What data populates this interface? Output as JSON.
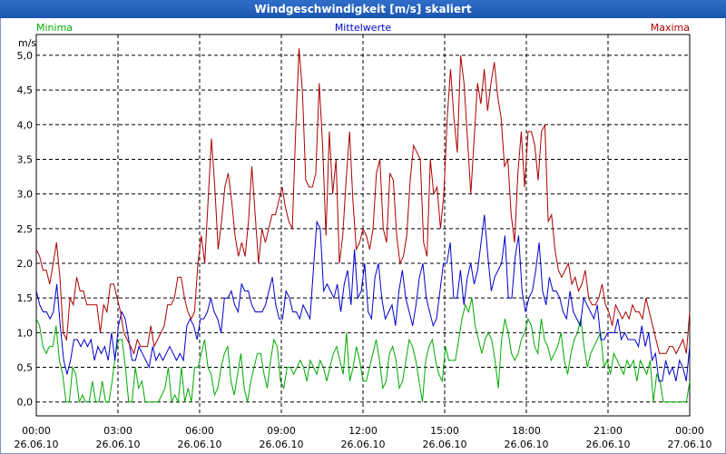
{
  "window": {
    "title": "Windgeschwindigkeit [m/s] skaliert"
  },
  "chart_data": {
    "type": "line",
    "title": "Windgeschwindigkeit [m/s] skaliert",
    "ylabel": "m/s",
    "ylim": [
      -0.2,
      5.3
    ],
    "xlim": [
      0,
      24
    ],
    "grid": true,
    "y_ticks": [
      "0,0",
      "0,5",
      "1,0",
      "1,5",
      "2,0",
      "2,5",
      "3,0",
      "3,5",
      "4,0",
      "4,5",
      "5,0"
    ],
    "x_ticks": [
      {
        "time": "00:00",
        "date": "26.06.10"
      },
      {
        "time": "03:00",
        "date": "26.06.10"
      },
      {
        "time": "06:00",
        "date": "26.06.10"
      },
      {
        "time": "09:00",
        "date": "26.06.10"
      },
      {
        "time": "12:00",
        "date": "26.06.10"
      },
      {
        "time": "15:00",
        "date": "26.06.10"
      },
      {
        "time": "18:00",
        "date": "26.06.10"
      },
      {
        "time": "21:00",
        "date": "26.06.10"
      },
      {
        "time": "00:00",
        "date": "27.06.10"
      }
    ],
    "series": [
      {
        "name": "Minima",
        "color": "#00aa00",
        "values": [
          1.2,
          1.1,
          0.8,
          0.7,
          0.8,
          0.8,
          1.1,
          0.6,
          0.4,
          0.0,
          0.0,
          0.5,
          0.4,
          0.0,
          0.1,
          0.0,
          0.0,
          0.3,
          0.0,
          0.0,
          0.3,
          0.0,
          0.0,
          0.3,
          0.7,
          0.9,
          0.9,
          0.5,
          0.0,
          0.0,
          0.5,
          0.2,
          0.3,
          0.0,
          0.0,
          0.0,
          0.0,
          0.0,
          0.1,
          0.2,
          0.5,
          0.0,
          0.1,
          0.0,
          0.5,
          0.0,
          0.2,
          0.0,
          0.5,
          0.5,
          0.7,
          0.9,
          0.5,
          0.4,
          0.1,
          0.2,
          0.5,
          0.7,
          0.8,
          0.3,
          0.1,
          0.4,
          0.7,
          0.2,
          0.0,
          0.3,
          0.5,
          0.7,
          0.7,
          0.4,
          0.2,
          0.6,
          0.9,
          0.8,
          0.3,
          0.2,
          0.5,
          0.5,
          0.4,
          0.5,
          0.6,
          0.5,
          0.3,
          0.6,
          0.5,
          0.4,
          0.6,
          0.5,
          0.3,
          0.5,
          0.7,
          0.8,
          0.6,
          0.4,
          1.0,
          0.3,
          0.5,
          0.8,
          0.6,
          0.3,
          0.3,
          0.5,
          0.7,
          0.9,
          0.6,
          0.2,
          0.3,
          0.7,
          0.8,
          0.6,
          0.2,
          0.3,
          0.6,
          0.9,
          0.8,
          0.6,
          0.3,
          0.0,
          0.6,
          0.8,
          0.9,
          0.6,
          0.4,
          0.3,
          0.8,
          0.6,
          0.6,
          0.6,
          0.9,
          1.2,
          1.4,
          1.3,
          1.5,
          1.1,
          0.9,
          0.7,
          0.9,
          1.0,
          0.9,
          0.6,
          0.2,
          0.9,
          1.2,
          1.0,
          0.7,
          0.6,
          0.7,
          0.9,
          1.0,
          1.2,
          1.1,
          0.8,
          0.7,
          1.2,
          0.9,
          0.8,
          0.6,
          0.7,
          0.8,
          1.0,
          0.6,
          0.4,
          0.7,
          0.9,
          1.0,
          1.2,
          0.8,
          0.5,
          0.7,
          0.8,
          0.9,
          1.0,
          0.5,
          0.6,
          0.4,
          0.7,
          0.6,
          0.5,
          0.4,
          0.6,
          0.5,
          0.6,
          0.3,
          0.6,
          0.5,
          0.4,
          0.6,
          0.0,
          0.4,
          0.3,
          0.0,
          0.0,
          0.0,
          0.0,
          0.0,
          0.0,
          0.0,
          0.0,
          0.3
        ]
      },
      {
        "name": "Mittelwerte",
        "color": "#0000cc",
        "values": [
          1.6,
          1.4,
          1.3,
          1.3,
          1.2,
          1.3,
          1.7,
          1.1,
          0.6,
          0.4,
          0.6,
          0.9,
          0.9,
          0.8,
          0.9,
          0.8,
          0.9,
          0.6,
          0.8,
          0.7,
          0.8,
          0.6,
          1.0,
          0.6,
          1.1,
          1.3,
          1.2,
          0.9,
          0.6,
          0.6,
          0.8,
          0.7,
          0.6,
          0.5,
          0.8,
          0.6,
          0.7,
          0.6,
          0.7,
          0.8,
          0.7,
          0.6,
          0.7,
          0.6,
          1.1,
          1.2,
          1.1,
          0.9,
          1.2,
          1.2,
          1.3,
          1.5,
          1.3,
          1.2,
          1.0,
          1.5,
          1.5,
          1.6,
          1.4,
          1.3,
          1.7,
          1.6,
          1.6,
          1.4,
          1.3,
          1.3,
          1.3,
          1.4,
          1.6,
          1.8,
          1.4,
          1.2,
          1.2,
          1.6,
          1.5,
          1.3,
          1.3,
          1.2,
          1.4,
          1.3,
          1.2,
          1.9,
          2.6,
          2.5,
          1.6,
          1.7,
          1.6,
          1.5,
          1.7,
          1.3,
          1.7,
          1.9,
          1.4,
          2.2,
          1.5,
          1.6,
          2.0,
          1.3,
          1.2,
          1.8,
          2.0,
          1.5,
          1.2,
          1.3,
          1.4,
          1.1,
          1.6,
          1.9,
          1.5,
          1.3,
          1.1,
          1.4,
          1.8,
          2.0,
          1.5,
          1.3,
          1.1,
          1.2,
          1.6,
          2.0,
          2.0,
          2.3,
          1.5,
          1.5,
          1.9,
          1.4,
          1.8,
          2.0,
          1.7,
          1.9,
          2.3,
          2.7,
          2.1,
          1.6,
          1.8,
          1.9,
          2.0,
          2.4,
          1.5,
          1.5,
          2.1,
          2.4,
          1.6,
          1.3,
          1.5,
          1.6,
          1.9,
          2.3,
          1.6,
          1.4,
          1.8,
          1.6,
          1.6,
          1.5,
          1.3,
          1.2,
          1.6,
          1.3,
          1.2,
          1.1,
          1.5,
          1.4,
          1.3,
          1.2,
          1.4,
          0.9,
          0.9,
          1.0,
          1.0,
          1.0,
          1.2,
          0.9,
          1.0,
          0.9,
          0.9,
          0.9,
          0.8,
          1.1,
          0.8,
          1.0,
          0.6,
          0.7,
          0.3,
          0.3,
          0.6,
          0.4,
          0.5,
          0.3,
          0.6,
          0.5,
          0.3,
          0.8
        ]
      },
      {
        "name": "Maxima",
        "color": "#aa0000",
        "values": [
          2.2,
          2.1,
          1.9,
          1.9,
          1.7,
          2.0,
          2.3,
          1.8,
          1.0,
          0.9,
          1.5,
          1.4,
          1.8,
          1.6,
          1.6,
          1.4,
          1.4,
          1.4,
          1.4,
          1.0,
          1.4,
          1.3,
          1.7,
          1.7,
          1.5,
          1.3,
          1.0,
          0.9,
          0.8,
          0.7,
          0.9,
          0.8,
          0.8,
          0.8,
          1.1,
          0.8,
          0.9,
          1.0,
          1.1,
          1.4,
          1.4,
          1.5,
          1.8,
          1.8,
          1.5,
          1.3,
          1.2,
          1.3,
          2.0,
          2.4,
          2.0,
          2.9,
          3.8,
          3.1,
          2.2,
          2.6,
          3.1,
          3.3,
          2.9,
          2.4,
          2.1,
          2.3,
          2.1,
          2.6,
          3.4,
          2.7,
          2.0,
          2.5,
          2.3,
          2.5,
          2.7,
          2.7,
          2.9,
          3.1,
          2.8,
          2.6,
          2.5,
          3.9,
          5.1,
          4.5,
          3.2,
          3.1,
          3.1,
          3.3,
          4.6,
          3.7,
          2.4,
          3.9,
          3.0,
          3.5,
          2.0,
          2.4,
          3.2,
          3.9,
          2.9,
          2.2,
          2.3,
          2.5,
          2.4,
          2.2,
          2.5,
          3.3,
          3.5,
          2.5,
          2.3,
          3.3,
          3.2,
          2.4,
          2.0,
          2.1,
          2.4,
          3.2,
          3.7,
          3.6,
          3.5,
          2.3,
          2.1,
          3.5,
          3.0,
          3.1,
          2.5,
          3.0,
          4.1,
          4.8,
          4.1,
          3.6,
          5.0,
          4.6,
          3.8,
          3.0,
          3.8,
          4.6,
          4.3,
          4.8,
          4.2,
          4.6,
          4.9,
          4.4,
          4.1,
          3.4,
          3.5,
          2.7,
          2.3,
          3.3,
          3.9,
          3.1,
          3.9,
          3.9,
          3.7,
          3.2,
          3.9,
          4.0,
          2.6,
          2.7,
          2.2,
          1.9,
          1.8,
          1.9,
          2.0,
          1.7,
          1.8,
          1.6,
          1.7,
          1.9,
          1.5,
          1.4,
          1.4,
          1.5,
          1.7,
          1.4,
          1.3,
          1.1,
          1.4,
          1.3,
          1.2,
          1.3,
          1.2,
          1.4,
          1.3,
          1.3,
          1.2,
          1.5,
          1.3,
          1.1,
          0.9,
          0.7,
          0.7,
          0.7,
          0.8,
          0.8,
          0.7,
          0.8,
          0.9,
          0.7,
          1.3
        ]
      }
    ]
  }
}
